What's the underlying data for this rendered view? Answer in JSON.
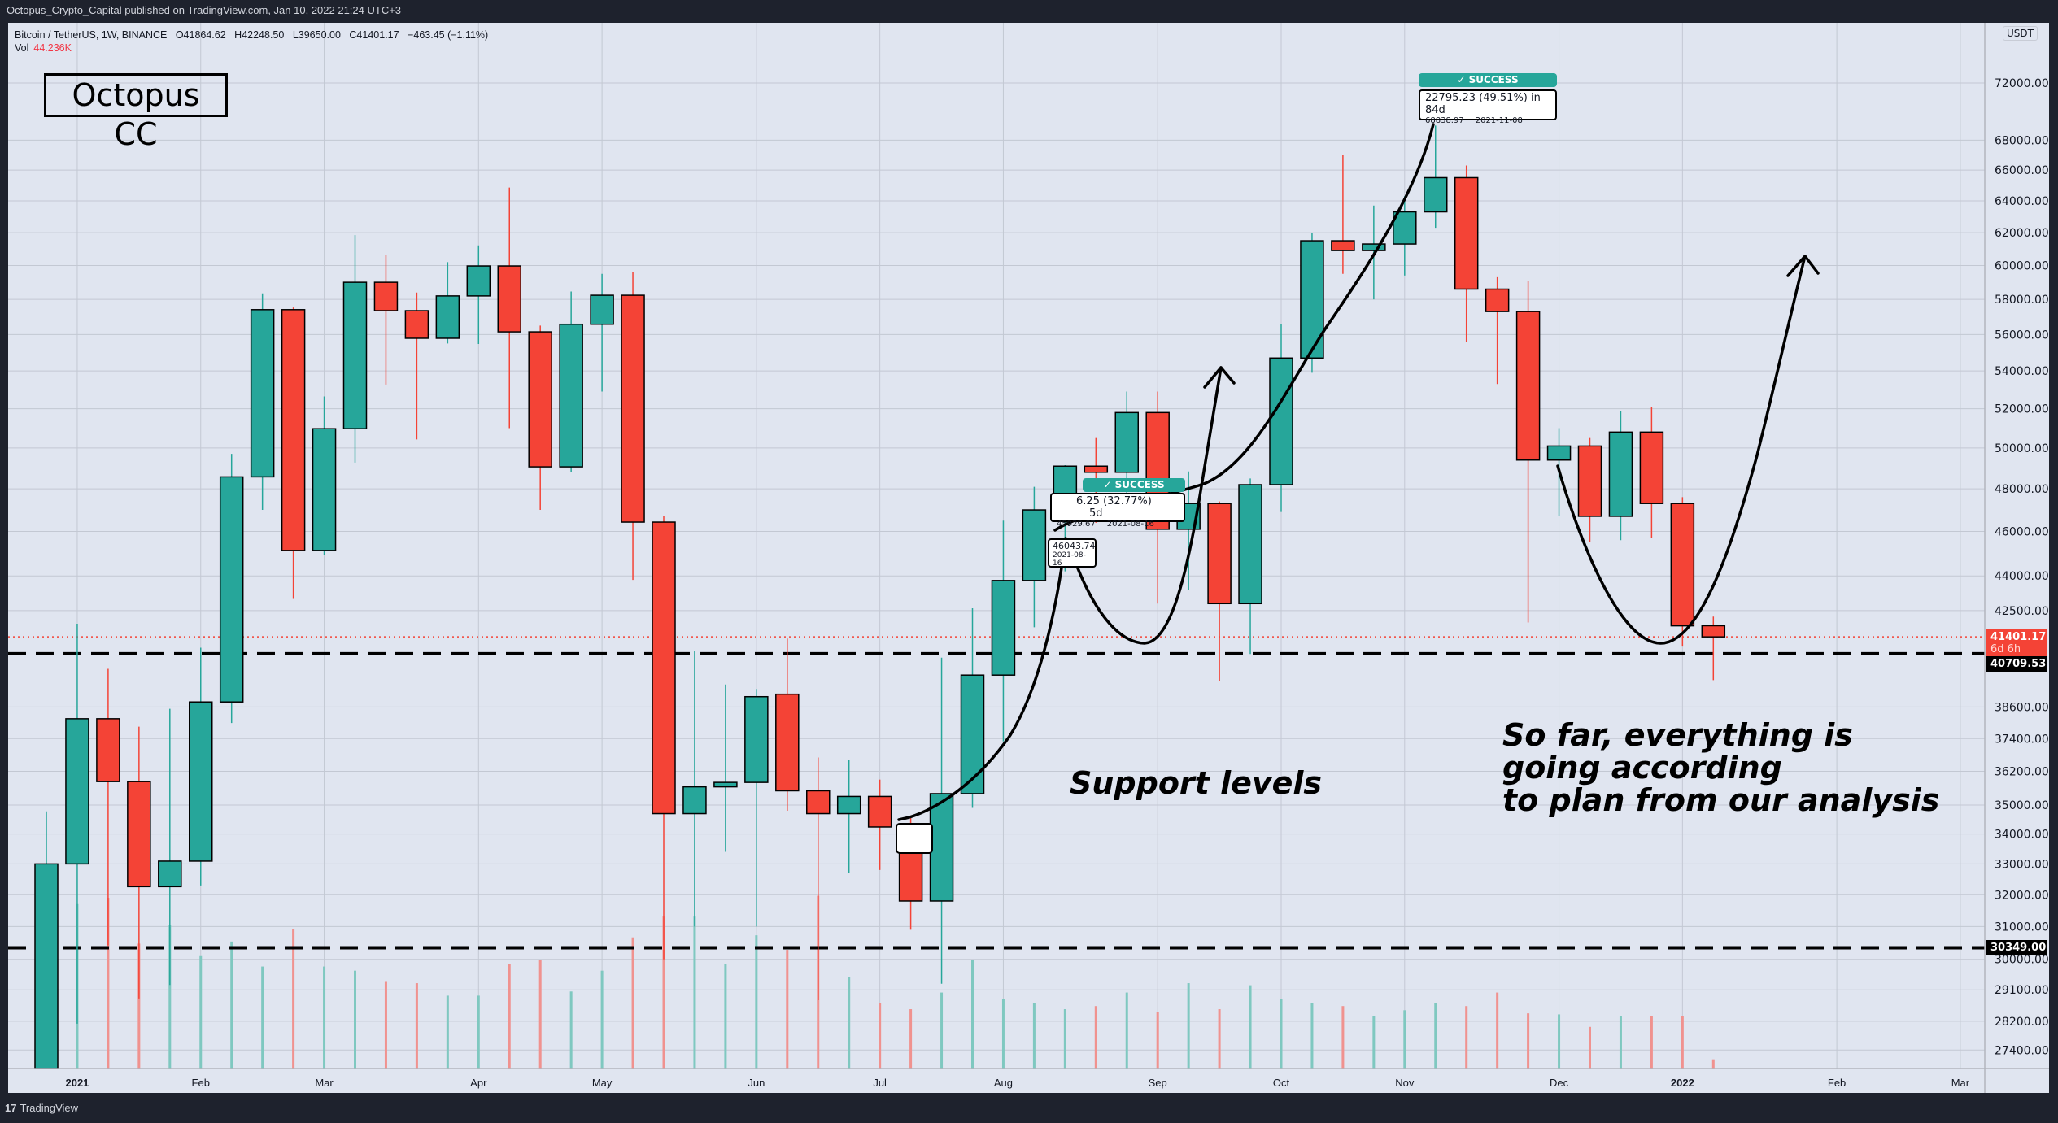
{
  "header": {
    "published": "Octopus_Crypto_Capital published on TradingView.com, Jan 10, 2022 21:24 UTC+3"
  },
  "legend": {
    "symbol": "Bitcoin / TetherUS, 1W, BINANCE",
    "open": "O41864.62",
    "high": "H42248.50",
    "low": "L39650.00",
    "close": "C41401.17",
    "change": "−463.45 (−1.11%)",
    "vol_label": "Vol",
    "vol_value": "44.236K"
  },
  "brand": "Octopus CC",
  "currency": "USDT",
  "footer": {
    "logo": "17",
    "name": "TradingView"
  },
  "colors": {
    "up": "#26a69a",
    "down": "#f44336",
    "up_vol": "#7fc8c0",
    "down_vol": "#f0928f",
    "bg": "#e0e5f0",
    "frame": "#1e222d"
  },
  "annotations": {
    "support_text": "Support levels",
    "plan_lines": [
      "So far, everything is",
      "going according",
      "to plan from our analysis"
    ],
    "success1": {
      "tag": "✓ SUCCESS",
      "main": "6.25 (32.77%)",
      "tail": "5d",
      "price": "45929.67",
      "date": "2021-08-16"
    },
    "entry1": {
      "price": "46043.74",
      "date": "2021-08-16"
    },
    "success2": {
      "tag": "✓ SUCCESS",
      "main": "22795.23 (49.51%) in 84d",
      "price": "68838.97",
      "date": "2021-11-08"
    }
  },
  "price_labels": {
    "current": "41401.17",
    "countdown": "6d 6h",
    "support1": "40709.53",
    "support2": "30349.00"
  },
  "chart_data": {
    "type": "candlestick",
    "title": "Bitcoin / TetherUS, 1W, BINANCE",
    "y_scale": "log",
    "ylim": [
      26900,
      76300
    ],
    "y_ticks": [
      72000,
      68000,
      66000,
      64000,
      62000,
      60000,
      58000,
      56000,
      54000,
      52000,
      50000,
      48000,
      46000,
      44000,
      42500,
      38600,
      37400,
      36200,
      35000,
      34000,
      33000,
      32000,
      31000,
      30000,
      29100,
      28200,
      27400
    ],
    "x_labels": [
      {
        "label": "2021",
        "bar": 1,
        "bold": true
      },
      {
        "label": "Feb",
        "bar": 5
      },
      {
        "label": "Mar",
        "bar": 9
      },
      {
        "label": "Apr",
        "bar": 14
      },
      {
        "label": "May",
        "bar": 18
      },
      {
        "label": "Jun",
        "bar": 23
      },
      {
        "label": "Jul",
        "bar": 27
      },
      {
        "label": "Aug",
        "bar": 31
      },
      {
        "label": "Sep",
        "bar": 36
      },
      {
        "label": "Oct",
        "bar": 40
      },
      {
        "label": "Nov",
        "bar": 44
      },
      {
        "label": "Dec",
        "bar": 49
      },
      {
        "label": "2022",
        "bar": 53,
        "bold": true
      },
      {
        "label": "Feb",
        "bar": 58
      },
      {
        "label": "Mar",
        "bar": 62
      }
    ],
    "horizontal_levels": [
      40709.53,
      30349.0
    ],
    "current_price": 41401.17,
    "candles_columns": [
      "week",
      "open",
      "high",
      "low",
      "close",
      "volume_k"
    ],
    "candles": [
      [
        "2020-12-28",
        26281,
        34778,
        25880,
        33000,
        820
      ],
      [
        "2021-01-04",
        33000,
        41950,
        28130,
        38150,
        790
      ],
      [
        "2021-01-11",
        38150,
        40100,
        30420,
        35828,
        820
      ],
      [
        "2021-01-18",
        35828,
        37850,
        28850,
        32259,
        600
      ],
      [
        "2021-01-25",
        32259,
        38531,
        29241,
        33092,
        690
      ],
      [
        "2021-02-01",
        33092,
        40955,
        32296,
        38795,
        540
      ],
      [
        "2021-02-08",
        38795,
        49707,
        37988,
        48577,
        610
      ],
      [
        "2021-02-15",
        48577,
        58352,
        47003,
        57408,
        490
      ],
      [
        "2021-02-22",
        57408,
        57533,
        43000,
        45135,
        670
      ],
      [
        "2021-03-01",
        45135,
        52640,
        44950,
        50971,
        490
      ],
      [
        "2021-03-08",
        50971,
        61844,
        49274,
        59000,
        470
      ],
      [
        "2021-03-15",
        59000,
        60633,
        53271,
        57351,
        420
      ],
      [
        "2021-03-22",
        57351,
        58400,
        50427,
        55791,
        410
      ],
      [
        "2021-03-29",
        55791,
        60200,
        55500,
        58202,
        350
      ],
      [
        "2021-04-05",
        58202,
        61215,
        55473,
        59970,
        350
      ],
      [
        "2021-04-12",
        59970,
        64854,
        51000,
        56150,
        500
      ],
      [
        "2021-04-19",
        56150,
        56500,
        47000,
        49066,
        520
      ],
      [
        "2021-04-26",
        49066,
        58458,
        48800,
        56578,
        370
      ],
      [
        "2021-05-03",
        56578,
        59500,
        52900,
        58240,
        470
      ],
      [
        "2021-05-10",
        58240,
        59594,
        43825,
        46431,
        630
      ],
      [
        "2021-05-17",
        46431,
        46700,
        30000,
        34700,
        730
      ],
      [
        "2021-05-24",
        34700,
        40841,
        31000,
        35641,
        730
      ],
      [
        "2021-05-31",
        35641,
        39476,
        33400,
        35800,
        500
      ],
      [
        "2021-06-07",
        35800,
        39300,
        31000,
        39000,
        640
      ],
      [
        "2021-06-14",
        39097,
        41330,
        34800,
        35500,
        570
      ],
      [
        "2021-06-21",
        35500,
        36700,
        28800,
        34700,
        830
      ],
      [
        "2021-06-28",
        34700,
        36600,
        32700,
        35300,
        440
      ],
      [
        "2021-07-05",
        35300,
        35900,
        32800,
        34240,
        315
      ],
      [
        "2021-07-12",
        34240,
        34600,
        30900,
        31800,
        285
      ],
      [
        "2021-07-19",
        31800,
        40550,
        29278,
        35400,
        365
      ],
      [
        "2021-07-26",
        35400,
        42600,
        34900,
        39850,
        520
      ],
      [
        "2021-08-02",
        39850,
        46500,
        37300,
        43800,
        335
      ],
      [
        "2021-08-09",
        43800,
        48100,
        41800,
        47000,
        315
      ],
      [
        "2021-08-16",
        47000,
        49150,
        44200,
        49100,
        285
      ],
      [
        "2021-08-23",
        49100,
        50500,
        46400,
        48800,
        300
      ],
      [
        "2021-08-30",
        48800,
        52900,
        46600,
        51800,
        365
      ],
      [
        "2021-09-06",
        51800,
        52900,
        42800,
        46100,
        270
      ],
      [
        "2021-09-13",
        46100,
        48840,
        43370,
        47300,
        410
      ],
      [
        "2021-09-20",
        47300,
        47400,
        39600,
        42800,
        285
      ],
      [
        "2021-09-27",
        42800,
        48500,
        40700,
        48200,
        400
      ],
      [
        "2021-10-04",
        48200,
        56600,
        46900,
        54700,
        335
      ],
      [
        "2021-10-11",
        54700,
        62000,
        53900,
        61500,
        315
      ],
      [
        "2021-10-18",
        61500,
        67000,
        59500,
        60900,
        300
      ],
      [
        "2021-10-25",
        60900,
        63700,
        58000,
        61300,
        250
      ],
      [
        "2021-11-01",
        61300,
        64300,
        59400,
        63300,
        280
      ],
      [
        "2021-11-08",
        63300,
        69000,
        62300,
        65500,
        315
      ],
      [
        "2021-11-15",
        65500,
        66300,
        55600,
        58600,
        300
      ],
      [
        "2021-11-22",
        58600,
        59300,
        53300,
        57300,
        365
      ],
      [
        "2021-11-29",
        57300,
        59100,
        42000,
        49400,
        265
      ],
      [
        "2021-12-06",
        49400,
        51000,
        46700,
        50100,
        260
      ],
      [
        "2021-12-13",
        50100,
        50500,
        45500,
        46700,
        200
      ],
      [
        "2021-12-20",
        46700,
        51900,
        45600,
        50800,
        250
      ],
      [
        "2021-12-27",
        50800,
        52100,
        45700,
        47300,
        250
      ],
      [
        "2022-01-03",
        47300,
        47600,
        41000,
        41860,
        250
      ],
      [
        "2022-01-10",
        41864.62,
        42248.5,
        39650.0,
        41401.17,
        44.236
      ]
    ]
  }
}
